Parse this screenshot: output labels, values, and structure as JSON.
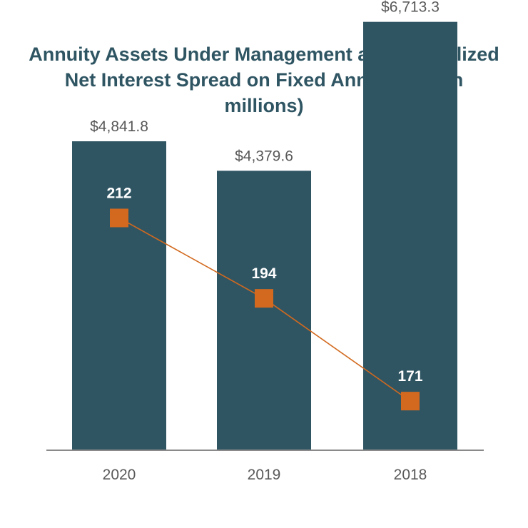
{
  "chart_data": {
    "type": "bar",
    "title": "Annuity Assets Under Management and Annualized Net Interest Spread on Fixed Annuities ($ in millions)",
    "categories": [
      "2020",
      "2019",
      "2018"
    ],
    "series": [
      {
        "type": "bar",
        "values": [
          4841.8,
          4379.6,
          6713.3
        ],
        "value_labels": [
          "$4,841.8",
          "$4,379.6",
          "$6,713.3"
        ],
        "color": "#2f5563"
      },
      {
        "type": "line",
        "values": [
          212,
          194,
          171
        ],
        "value_labels": [
          "212",
          "194",
          "171"
        ],
        "color": "#d2691e",
        "marker": "square"
      }
    ],
    "bar_ylim": [
      0,
      7000
    ],
    "line_ylim": [
      160,
      260
    ],
    "grid": false,
    "legend": "none"
  }
}
